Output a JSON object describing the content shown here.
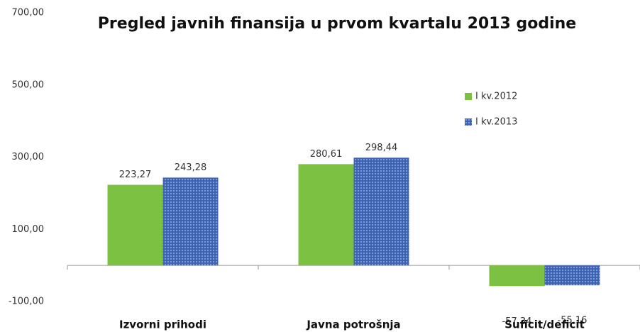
{
  "chart_data": {
    "type": "bar",
    "title": "Pregled javnih finansija u prvom kvartalu 2013 godine",
    "categories": [
      "Izvorni prihodi",
      "Javna potrošnja",
      "Suficit/deficit"
    ],
    "series": [
      {
        "name": "I kv.2012",
        "color": "#7cc142",
        "values": [
          223.27,
          280.61,
          -57.34
        ],
        "value_labels": [
          "223,27",
          "280,61",
          "-57,34"
        ]
      },
      {
        "name": "I kv.2013",
        "color": "#3d63b3",
        "values": [
          243.28,
          298.44,
          -55.16
        ],
        "value_labels": [
          "243,28",
          "298,44",
          "-55,16"
        ]
      }
    ],
    "ylim": [
      -100,
      700
    ],
    "yticks": [
      {
        "value": -100,
        "label": "-100,00"
      },
      {
        "value": 100,
        "label": "100,00"
      },
      {
        "value": 300,
        "label": "300,00"
      },
      {
        "value": 500,
        "label": "500,00"
      },
      {
        "value": 700,
        "label": "700,00"
      }
    ],
    "grid": false,
    "legend": "upper right"
  }
}
